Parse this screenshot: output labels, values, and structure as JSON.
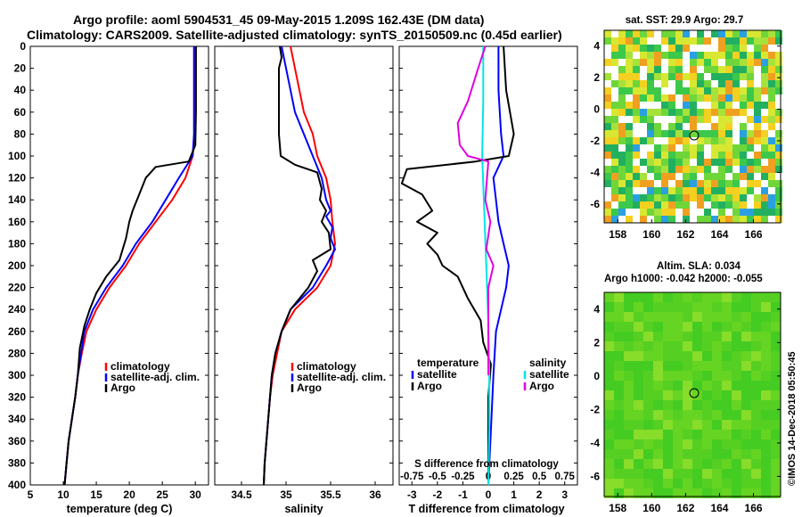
{
  "title": {
    "line1": "Argo profile: aoml 5904531_45 09-May-2015 1.209S 162.43E (DM data)",
    "line2": "Climatology: CARS2009. Satellite-adjusted climatology: synTS_20150509.nc (0.45d earlier)"
  },
  "side_text": "©IMOS 14-Dec-2018 05:50:45",
  "colors": {
    "clim": "#ff0000",
    "sat": "#0000ff",
    "argo": "#000000",
    "sal_sat": "#00e5e5",
    "sal_argo": "#e000e0"
  },
  "chart_data": [
    {
      "type": "line",
      "id": "temperature",
      "xlabel": "temperature (deg C)",
      "ylabel": "",
      "xlim": [
        5,
        32
      ],
      "ylim": [
        0,
        400
      ],
      "xticks": [
        "5",
        "10",
        "15",
        "20",
        "25",
        "30"
      ],
      "yticks": [
        "0",
        "20",
        "40",
        "60",
        "80",
        "100",
        "120",
        "140",
        "160",
        "180",
        "200",
        "220",
        "240",
        "260",
        "280",
        "300",
        "320",
        "340",
        "360",
        "380",
        "400"
      ],
      "legend": [
        "climatology",
        "satellite-adj. clim.",
        "Argo"
      ],
      "series": [
        {
          "name": "climatology",
          "color": "clim",
          "points": [
            [
              30.0,
              0
            ],
            [
              30.0,
              40
            ],
            [
              29.9,
              80
            ],
            [
              29.6,
              100
            ],
            [
              28.5,
              120
            ],
            [
              26.5,
              140
            ],
            [
              24.0,
              160
            ],
            [
              21.5,
              180
            ],
            [
              19.5,
              200
            ],
            [
              17.0,
              220
            ],
            [
              15.0,
              240
            ],
            [
              13.5,
              260
            ],
            [
              12.8,
              280
            ],
            [
              12.2,
              300
            ],
            [
              11.8,
              320
            ],
            [
              11.3,
              340
            ],
            [
              10.8,
              360
            ],
            [
              10.5,
              380
            ],
            [
              10.2,
              400
            ]
          ]
        },
        {
          "name": "satellite-adj. clim.",
          "color": "sat",
          "points": [
            [
              29.8,
              0
            ],
            [
              29.8,
              40
            ],
            [
              29.8,
              80
            ],
            [
              29.6,
              100
            ],
            [
              27.5,
              120
            ],
            [
              25.5,
              140
            ],
            [
              23.5,
              160
            ],
            [
              21.0,
              180
            ],
            [
              19.0,
              200
            ],
            [
              16.5,
              220
            ],
            [
              14.5,
              240
            ],
            [
              13.2,
              260
            ],
            [
              12.7,
              280
            ],
            [
              12.2,
              300
            ],
            [
              11.8,
              320
            ],
            [
              11.3,
              340
            ],
            [
              10.8,
              360
            ],
            [
              10.5,
              380
            ],
            [
              10.2,
              400
            ]
          ]
        },
        {
          "name": "Argo",
          "color": "argo",
          "points": [
            [
              30.1,
              0
            ],
            [
              30.1,
              60
            ],
            [
              30.0,
              90
            ],
            [
              29.0,
              105
            ],
            [
              24.0,
              110
            ],
            [
              22.5,
              120
            ],
            [
              21.5,
              135
            ],
            [
              20.5,
              150
            ],
            [
              20.0,
              160
            ],
            [
              19.5,
              175
            ],
            [
              19.0,
              185
            ],
            [
              18.5,
              195
            ],
            [
              16.5,
              210
            ],
            [
              15.0,
              225
            ],
            [
              14.0,
              240
            ],
            [
              13.2,
              255
            ],
            [
              12.5,
              275
            ],
            [
              12.2,
              300
            ],
            [
              11.8,
              320
            ],
            [
              11.3,
              340
            ],
            [
              10.8,
              360
            ],
            [
              10.5,
              380
            ],
            [
              10.2,
              400
            ]
          ]
        }
      ]
    },
    {
      "type": "line",
      "id": "salinity",
      "xlabel": "salinity",
      "xlim": [
        34.2,
        36.2
      ],
      "ylim": [
        0,
        400
      ],
      "xticks": [
        "34.5",
        "35",
        "35.5",
        "36"
      ],
      "legend": [
        "climatology",
        "satellite-adj. clim.",
        "Argo"
      ],
      "series": [
        {
          "name": "climatology",
          "color": "clim",
          "points": [
            [
              35.05,
              0
            ],
            [
              35.1,
              20
            ],
            [
              35.15,
              40
            ],
            [
              35.2,
              60
            ],
            [
              35.3,
              80
            ],
            [
              35.35,
              100
            ],
            [
              35.45,
              120
            ],
            [
              35.5,
              140
            ],
            [
              35.52,
              160
            ],
            [
              35.55,
              180
            ],
            [
              35.5,
              200
            ],
            [
              35.35,
              220
            ],
            [
              35.1,
              240
            ],
            [
              34.95,
              260
            ],
            [
              34.9,
              280
            ],
            [
              34.85,
              300
            ],
            [
              34.82,
              320
            ],
            [
              34.8,
              340
            ],
            [
              34.78,
              360
            ],
            [
              34.76,
              380
            ],
            [
              34.75,
              400
            ]
          ]
        },
        {
          "name": "satellite-adj. clim.",
          "color": "sat",
          "points": [
            [
              34.95,
              0
            ],
            [
              35.0,
              20
            ],
            [
              35.05,
              40
            ],
            [
              35.1,
              60
            ],
            [
              35.2,
              80
            ],
            [
              35.3,
              100
            ],
            [
              35.4,
              120
            ],
            [
              35.45,
              140
            ],
            [
              35.5,
              150
            ],
            [
              35.45,
              155
            ],
            [
              35.52,
              165
            ],
            [
              35.5,
              175
            ],
            [
              35.55,
              185
            ],
            [
              35.45,
              200
            ],
            [
              35.3,
              220
            ],
            [
              35.05,
              240
            ],
            [
              34.95,
              260
            ],
            [
              34.88,
              280
            ],
            [
              34.84,
              300
            ],
            [
              34.82,
              320
            ],
            [
              34.8,
              340
            ],
            [
              34.78,
              360
            ],
            [
              34.76,
              380
            ],
            [
              34.75,
              400
            ]
          ]
        },
        {
          "name": "Argo",
          "color": "argo",
          "points": [
            [
              34.93,
              0
            ],
            [
              34.95,
              10
            ],
            [
              34.92,
              20
            ],
            [
              34.92,
              80
            ],
            [
              34.94,
              100
            ],
            [
              35.1,
              108
            ],
            [
              35.35,
              115
            ],
            [
              35.4,
              130
            ],
            [
              35.38,
              140
            ],
            [
              35.45,
              150
            ],
            [
              35.4,
              160
            ],
            [
              35.48,
              170
            ],
            [
              35.5,
              185
            ],
            [
              35.3,
              195
            ],
            [
              35.35,
              205
            ],
            [
              35.25,
              220
            ],
            [
              35.05,
              240
            ],
            [
              34.95,
              260
            ],
            [
              34.88,
              280
            ],
            [
              34.84,
              300
            ],
            [
              34.82,
              320
            ],
            [
              34.8,
              340
            ],
            [
              34.78,
              360
            ],
            [
              34.76,
              380
            ],
            [
              34.75,
              400
            ]
          ]
        }
      ]
    },
    {
      "type": "line",
      "id": "difference",
      "xlabel": "T difference from climatology",
      "xlabel_top": "S difference from climatology",
      "xlim": [
        -3.5,
        3.5
      ],
      "ylim": [
        0,
        400
      ],
      "xticks": [
        "-3",
        "-2",
        "-1",
        "0",
        "1",
        "2",
        "3"
      ],
      "xticks_top": [
        "-0.75",
        "-0.5",
        "-0.25",
        "0",
        "0.25",
        "0.5",
        "0.75"
      ],
      "legend_temperature": "temperature",
      "legend_salinity": "salinity",
      "legend_items": [
        "satellite",
        "Argo"
      ],
      "series": [
        {
          "name": "T satellite",
          "color": "sat",
          "points": [
            [
              0.4,
              0
            ],
            [
              0.4,
              40
            ],
            [
              0.5,
              80
            ],
            [
              0.6,
              100
            ],
            [
              0.2,
              120
            ],
            [
              0.3,
              140
            ],
            [
              0.4,
              160
            ],
            [
              0.6,
              180
            ],
            [
              0.8,
              200
            ],
            [
              0.7,
              220
            ],
            [
              0.5,
              240
            ],
            [
              0.3,
              260
            ],
            [
              0.2,
              300
            ],
            [
              0.1,
              350
            ],
            [
              0.0,
              400
            ]
          ]
        },
        {
          "name": "T Argo",
          "color": "argo",
          "points": [
            [
              0.6,
              0
            ],
            [
              0.7,
              40
            ],
            [
              1.0,
              80
            ],
            [
              0.8,
              100
            ],
            [
              -0.5,
              105
            ],
            [
              -3.2,
              112
            ],
            [
              -3.4,
              125
            ],
            [
              -2.6,
              135
            ],
            [
              -2.2,
              150
            ],
            [
              -2.8,
              160
            ],
            [
              -2.0,
              170
            ],
            [
              -2.4,
              180
            ],
            [
              -2.0,
              190
            ],
            [
              -1.8,
              200
            ],
            [
              -1.2,
              210
            ],
            [
              -0.8,
              230
            ],
            [
              -0.3,
              250
            ],
            [
              -0.2,
              270
            ],
            [
              0.1,
              290
            ],
            [
              0.0,
              320
            ],
            [
              0.0,
              400
            ]
          ]
        },
        {
          "name": "S satellite",
          "color": "sal_sat",
          "points": [
            [
              -0.05,
              0
            ],
            [
              -0.05,
              50
            ],
            [
              -0.06,
              100
            ],
            [
              -0.04,
              150
            ],
            [
              -0.02,
              200
            ],
            [
              0.0,
              250
            ],
            [
              0.01,
              300
            ],
            [
              0.01,
              350
            ],
            [
              0.0,
              400
            ]
          ]
        },
        {
          "name": "S Argo",
          "color": "sal_argo",
          "points": [
            [
              -0.03,
              0
            ],
            [
              -0.1,
              20
            ],
            [
              -0.2,
              50
            ],
            [
              -0.3,
              70
            ],
            [
              -0.28,
              90
            ],
            [
              -0.2,
              100
            ],
            [
              0.0,
              105
            ],
            [
              -0.03,
              140
            ],
            [
              0.02,
              160
            ],
            [
              -0.02,
              185
            ],
            [
              0.05,
              200
            ],
            [
              0.0,
              220
            ],
            [
              0.0,
              300
            ]
          ]
        }
      ]
    }
  ],
  "maps": {
    "sst": {
      "title": "sat. SST: 29.9 Argo: 29.7",
      "yticks": [
        "4",
        "2",
        "0",
        "-2",
        "-4",
        "-6"
      ],
      "xticks": [
        "158",
        "160",
        "162",
        "164",
        "166"
      ]
    },
    "sla": {
      "title1": "Altim. SLA: 0.034",
      "title2": "Argo h1000: -0.042 h2000: -0.055",
      "yticks": [
        "4",
        "2",
        "0",
        "-2",
        "-4",
        "-6"
      ],
      "xticks": [
        "158",
        "160",
        "162",
        "164",
        "166"
      ]
    }
  }
}
